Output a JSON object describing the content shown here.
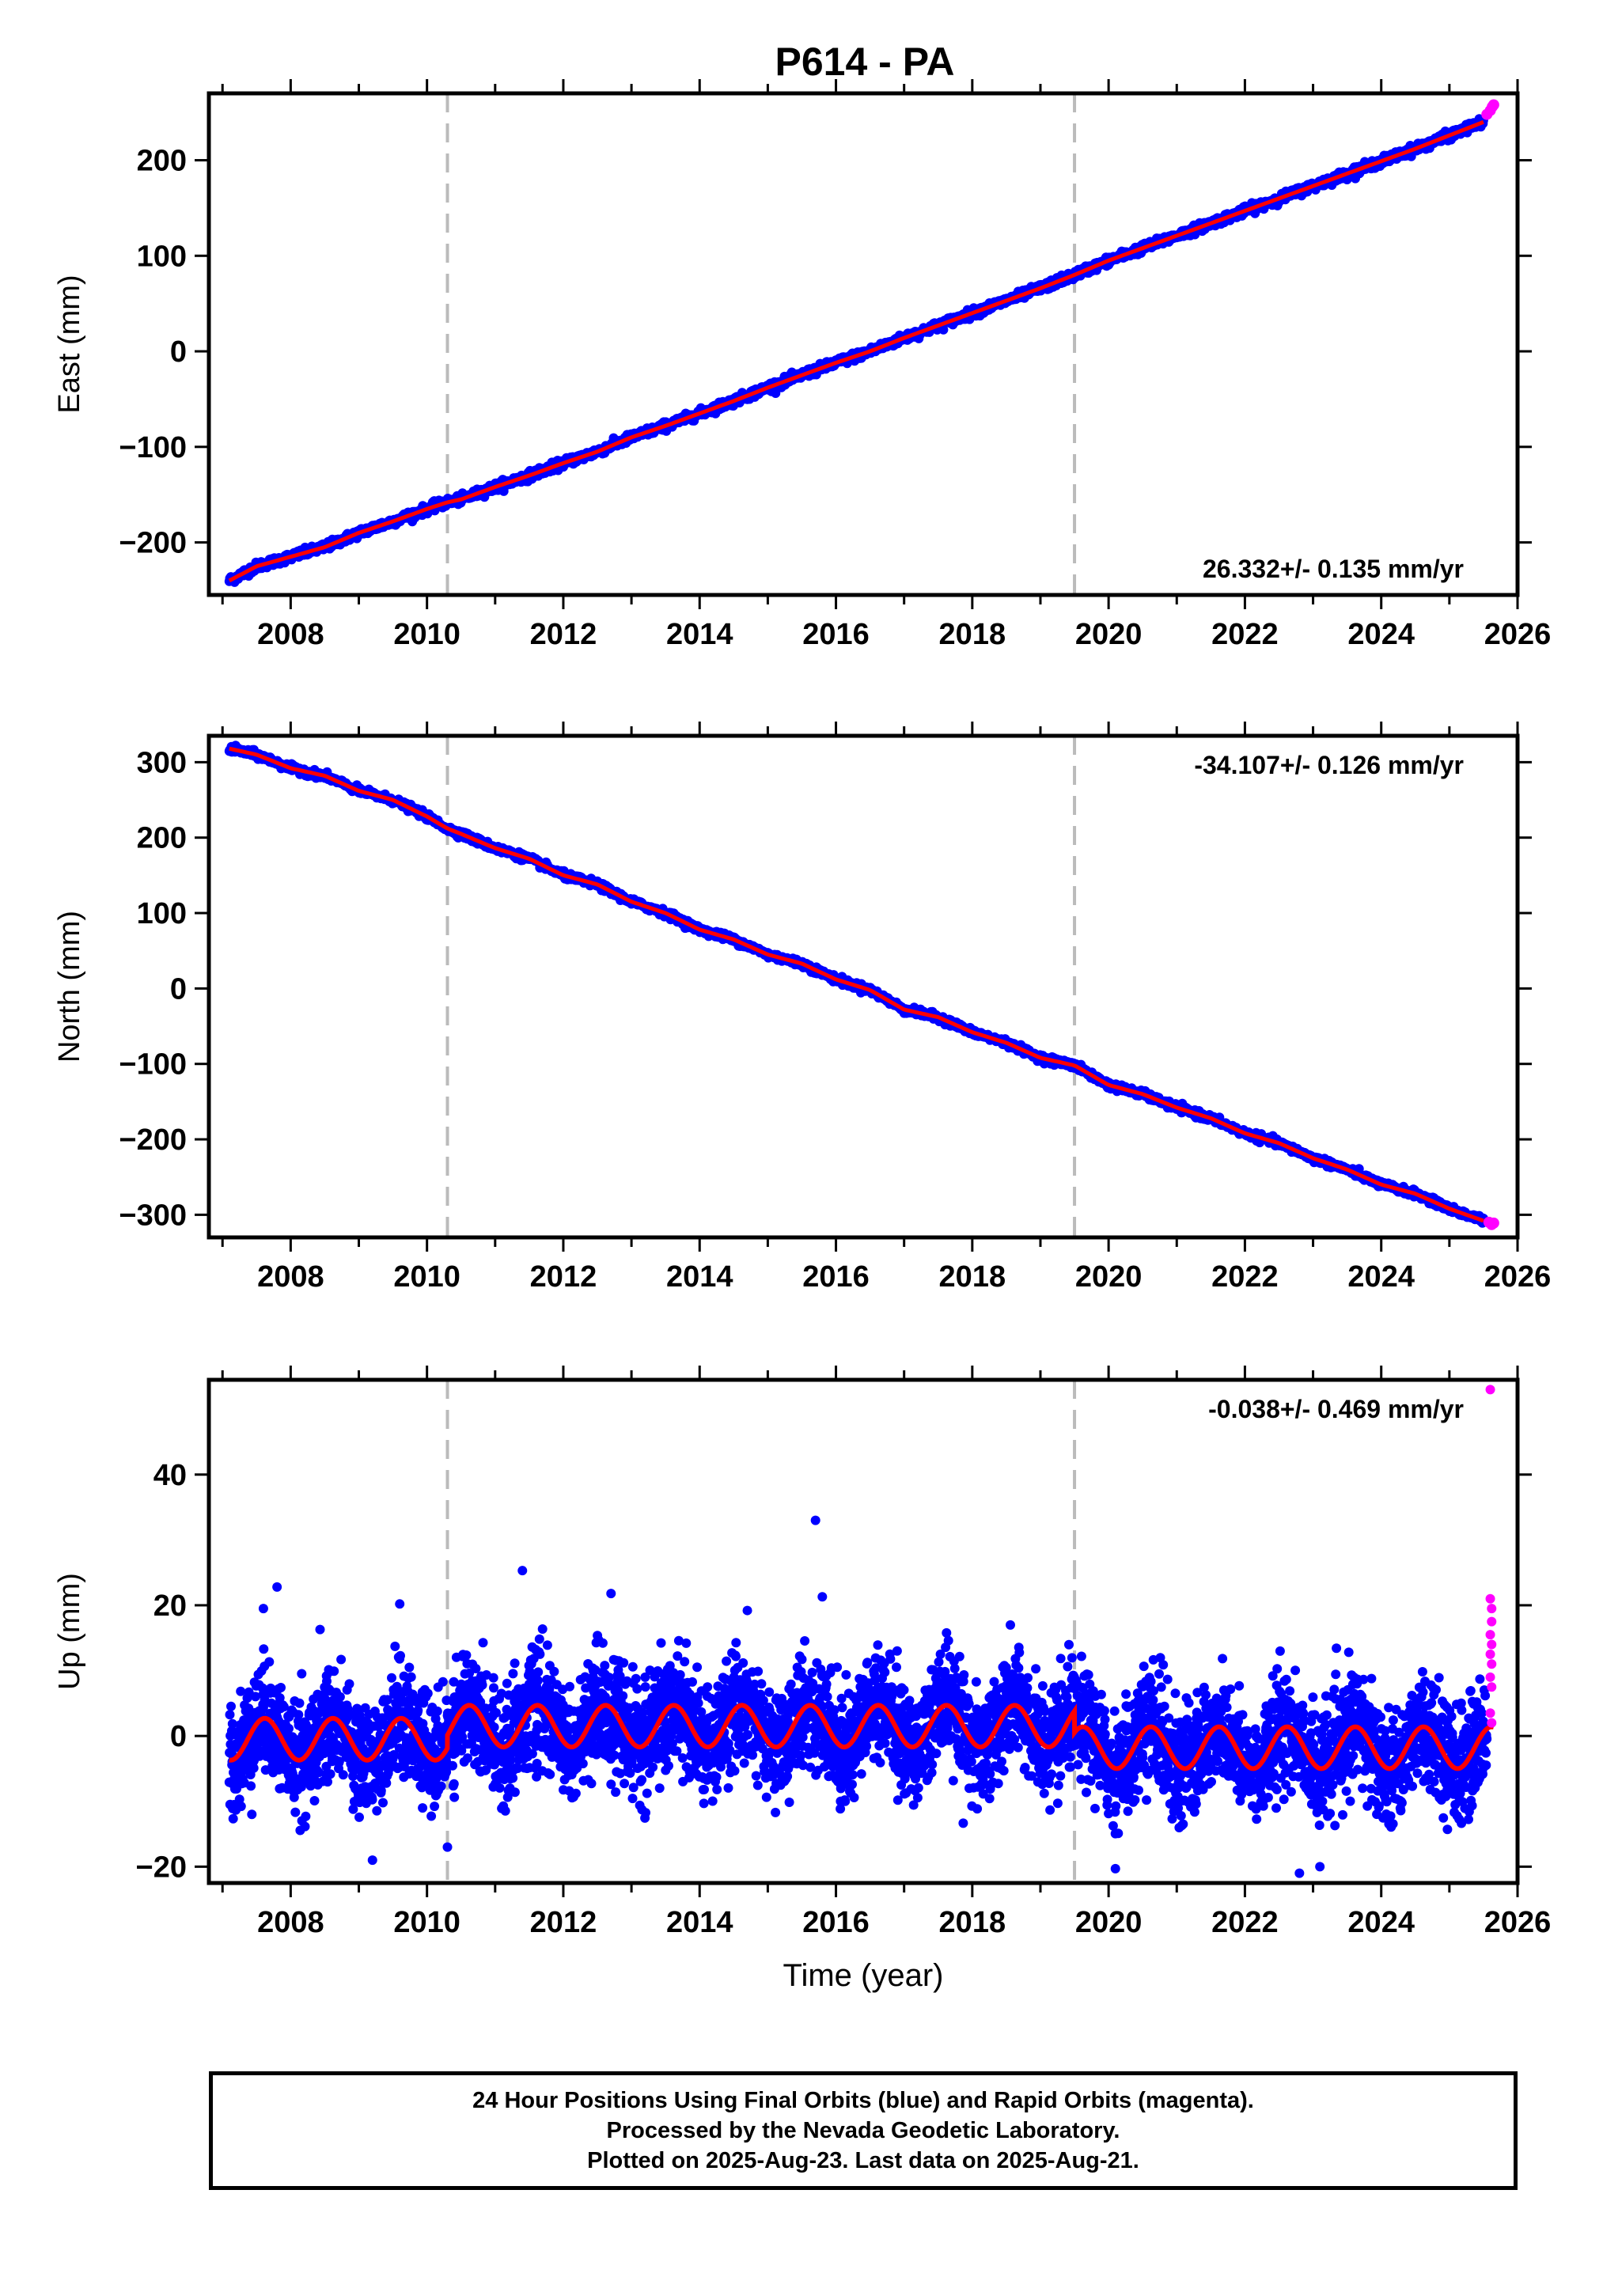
{
  "title": "P614 - PA",
  "colors": {
    "final_orbits": "#0000ff",
    "rapid_orbits": "#ff00ff",
    "model": "#ff0000",
    "events": "#bbbbbb"
  },
  "chart_data": [
    {
      "type": "scatter",
      "ylabel": "East (mm)",
      "xlabel": "",
      "xlim": [
        2006.8,
        2026.0
      ],
      "ylim": [
        -255,
        270
      ],
      "xticks": [
        "2008",
        "2010",
        "2012",
        "2014",
        "2016",
        "2018",
        "2020",
        "2022",
        "2024",
        "2026"
      ],
      "yticks": [
        "200",
        "100",
        "0",
        "−100",
        "−200"
      ],
      "ytick_values": [
        200,
        100,
        0,
        -100,
        -200
      ],
      "events_x": [
        2010.3,
        2019.5
      ],
      "rate_text": "26.332+/- 0.135 mm/yr",
      "rate_position": "bottom-right",
      "series": [
        {
          "name": "Final Orbits",
          "color": "#0000ff",
          "x": [
            2007.1,
            2007.5,
            2008.0,
            2008.5,
            2009.0,
            2009.5,
            2010.0,
            2010.3,
            2010.5,
            2011.0,
            2011.5,
            2012.0,
            2012.5,
            2013.0,
            2013.5,
            2014.0,
            2014.5,
            2015.0,
            2015.5,
            2016.0,
            2016.5,
            2017.0,
            2017.5,
            2018.0,
            2018.5,
            2019.0,
            2019.5,
            2020.0,
            2020.5,
            2021.0,
            2021.5,
            2022.0,
            2022.5,
            2023.0,
            2023.5,
            2024.0,
            2024.5,
            2025.0,
            2025.5
          ],
          "y": [
            -240,
            -225,
            -215,
            -205,
            -190,
            -178,
            -165,
            -158,
            -155,
            -142,
            -130,
            -117,
            -105,
            -90,
            -78,
            -65,
            -52,
            -38,
            -25,
            -12,
            0,
            14,
            27,
            40,
            53,
            66,
            80,
            95,
            108,
            121,
            134,
            147,
            160,
            173,
            186,
            199,
            212,
            226,
            240
          ]
        },
        {
          "name": "Rapid Orbits",
          "color": "#ff00ff",
          "x": [
            2025.55,
            2025.6,
            2025.63,
            2025.65
          ],
          "y": [
            248,
            252,
            256,
            258
          ]
        },
        {
          "name": "Model",
          "color": "#ff0000",
          "x": [
            2007.1,
            2025.6
          ],
          "y": [
            -240,
            248
          ]
        }
      ]
    },
    {
      "type": "scatter",
      "ylabel": "North (mm)",
      "xlabel": "",
      "xlim": [
        2006.8,
        2026.0
      ],
      "ylim": [
        -330,
        335
      ],
      "xticks": [
        "2008",
        "2010",
        "2012",
        "2014",
        "2016",
        "2018",
        "2020",
        "2022",
        "2024",
        "2026"
      ],
      "yticks": [
        "300",
        "200",
        "100",
        "0",
        "−100",
        "−200",
        "−300"
      ],
      "ytick_values": [
        300,
        200,
        100,
        0,
        -100,
        -200,
        -300
      ],
      "events_x": [
        2010.3,
        2019.5
      ],
      "rate_text": "-34.107+/- 0.126 mm/yr",
      "rate_position": "top-right",
      "series": [
        {
          "name": "Final Orbits",
          "color": "#0000ff",
          "x": [
            2007.1,
            2007.5,
            2008.0,
            2008.5,
            2009.0,
            2009.5,
            2010.0,
            2010.3,
            2010.5,
            2011.0,
            2011.5,
            2012.0,
            2012.5,
            2013.0,
            2013.5,
            2014.0,
            2014.5,
            2015.0,
            2015.5,
            2016.0,
            2016.5,
            2017.0,
            2017.5,
            2018.0,
            2018.5,
            2019.0,
            2019.5,
            2020.0,
            2020.5,
            2021.0,
            2021.5,
            2022.0,
            2022.5,
            2023.0,
            2023.5,
            2024.0,
            2024.5,
            2025.0,
            2025.5
          ],
          "y": [
            318,
            310,
            292,
            282,
            262,
            250,
            228,
            212,
            205,
            186,
            172,
            150,
            138,
            115,
            100,
            78,
            65,
            45,
            33,
            12,
            -2,
            -28,
            -38,
            -58,
            -72,
            -92,
            -102,
            -128,
            -140,
            -158,
            -172,
            -192,
            -205,
            -225,
            -240,
            -260,
            -272,
            -292,
            -308
          ]
        },
        {
          "name": "Rapid Orbits",
          "color": "#ff00ff",
          "x": [
            2025.58,
            2025.62,
            2025.65
          ],
          "y": [
            -310,
            -313,
            -311
          ]
        },
        {
          "name": "Model",
          "color": "#ff0000",
          "x": [
            2007.1,
            2025.6
          ],
          "y": [
            318,
            -310
          ]
        }
      ]
    },
    {
      "type": "scatter",
      "ylabel": "Up (mm)",
      "xlabel": "Time (year)",
      "xlim": [
        2006.8,
        2026.0
      ],
      "ylim": [
        -22.5,
        54.5
      ],
      "xticks": [
        "2008",
        "2010",
        "2012",
        "2014",
        "2016",
        "2018",
        "2020",
        "2022",
        "2024",
        "2026"
      ],
      "yticks": [
        "40",
        "20",
        "0",
        "−20"
      ],
      "ytick_values": [
        40,
        20,
        0,
        -20
      ],
      "events_x": [
        2010.3,
        2019.5
      ],
      "rate_text": "-0.038+/- 0.469 mm/yr",
      "rate_position": "top-right",
      "scatter_noise_mm": 5.5,
      "seasonal_model": {
        "annual_amplitude_mm": 3.2,
        "segment_offsets_mm": [
          [
            2007.1,
            2010.3,
            -0.5
          ],
          [
            2010.3,
            2019.5,
            1.5
          ],
          [
            2019.5,
            2025.65,
            -1.8
          ]
        ]
      },
      "series": [
        {
          "name": "Final Orbits",
          "color": "#0000ff",
          "outliers_x": [
            2007.8,
            2007.6,
            2009.6,
            2011.4,
            2012.7,
            2015.7,
            2015.8,
            2014.7,
            2020.1,
            2022.8,
            2023.1,
            2009.2,
            2010.3
          ],
          "outliers_y": [
            22.8,
            19.5,
            20.2,
            25.3,
            21.8,
            33.0,
            21.3,
            19.2,
            -20.3,
            -21.0,
            -20.0,
            -19.0,
            -17.0
          ]
        },
        {
          "name": "Rapid Orbits",
          "color": "#ff00ff",
          "x": [
            2025.6,
            2025.6,
            2025.62,
            2025.62,
            2025.6,
            2025.62,
            2025.6,
            2025.62,
            2025.6,
            2025.62,
            2025.6,
            2025.62
          ],
          "y": [
            53.0,
            21.0,
            19.5,
            17.5,
            15.5,
            14.0,
            12.5,
            11.0,
            9.0,
            7.5,
            3.5,
            2.0
          ]
        }
      ]
    }
  ],
  "footer": {
    "line1": "24 Hour Positions Using Final Orbits (blue) and Rapid Orbits (magenta).",
    "line2": "Processed by the Nevada Geodetic Laboratory.",
    "line3": "Plotted on 2025-Aug-23. Last data on 2025-Aug-21."
  }
}
